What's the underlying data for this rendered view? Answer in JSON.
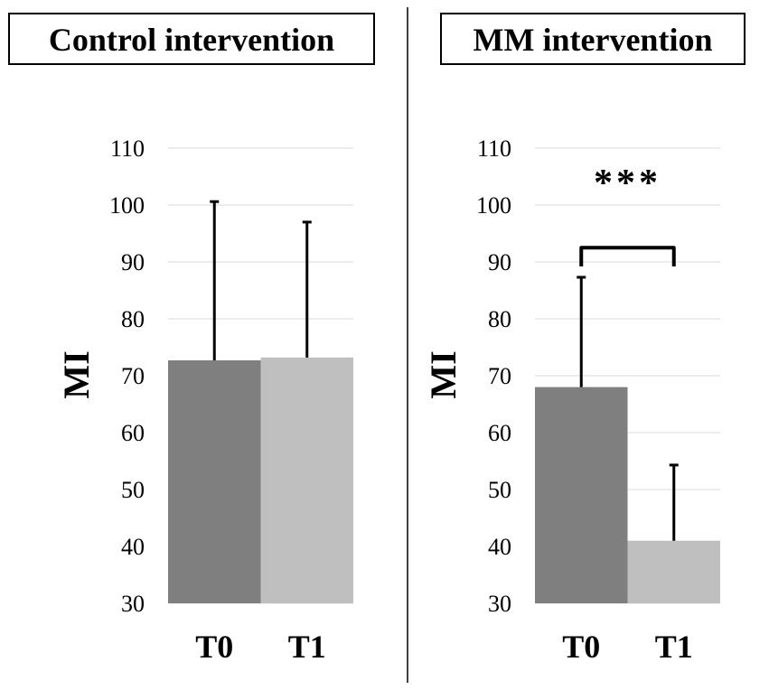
{
  "chart_data": [
    {
      "type": "bar",
      "title": "Control intervention",
      "ylabel": "MI",
      "xlabel": "",
      "ylim": [
        30,
        110
      ],
      "yticks": [
        30,
        40,
        50,
        60,
        70,
        80,
        90,
        100,
        110
      ],
      "grid": true,
      "categories": [
        "T0",
        "T1"
      ],
      "values": [
        72.7,
        73.2
      ],
      "error_upper": [
        100.6,
        97.0
      ],
      "colors": [
        "#7f7f7f",
        "#bfbfbf"
      ],
      "significance": null
    },
    {
      "type": "bar",
      "title": "MM intervention",
      "ylabel": "MI",
      "xlabel": "",
      "ylim": [
        30,
        110
      ],
      "yticks": [
        30,
        40,
        50,
        60,
        70,
        80,
        90,
        100,
        110
      ],
      "grid": true,
      "categories": [
        "T0",
        "T1"
      ],
      "values": [
        68.0,
        41.0
      ],
      "error_upper": [
        87.3,
        54.3
      ],
      "colors": [
        "#7f7f7f",
        "#bfbfbf"
      ],
      "significance": {
        "label": "***",
        "between": [
          "T0",
          "T1"
        ],
        "level": 92.5
      }
    }
  ]
}
